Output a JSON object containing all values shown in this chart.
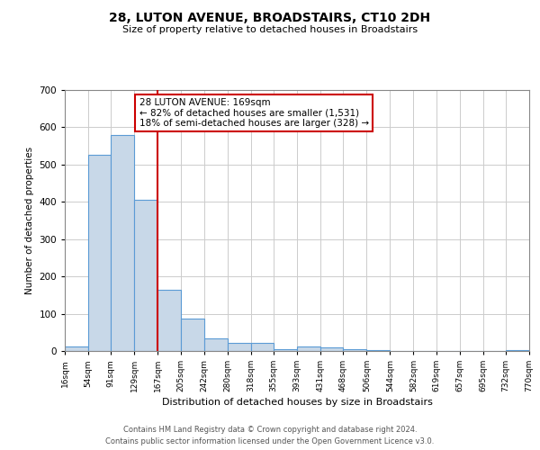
{
  "title": "28, LUTON AVENUE, BROADSTAIRS, CT10 2DH",
  "subtitle": "Size of property relative to detached houses in Broadstairs",
  "xlabel": "Distribution of detached houses by size in Broadstairs",
  "ylabel": "Number of detached properties",
  "bin_edges": [
    16,
    54,
    91,
    129,
    167,
    205,
    242,
    280,
    318,
    355,
    393,
    431,
    468,
    506,
    544,
    582,
    619,
    657,
    695,
    732,
    770
  ],
  "bar_heights": [
    13,
    527,
    580,
    405,
    163,
    87,
    35,
    22,
    22,
    5,
    13,
    10,
    5,
    3,
    0,
    0,
    0,
    0,
    0,
    3
  ],
  "bar_color": "#c8d8e8",
  "bar_edge_color": "#5b9bd5",
  "vline_x": 167,
  "vline_color": "#cc0000",
  "ylim": [
    0,
    700
  ],
  "yticks": [
    0,
    100,
    200,
    300,
    400,
    500,
    600,
    700
  ],
  "tick_labels": [
    "16sqm",
    "54sqm",
    "91sqm",
    "129sqm",
    "167sqm",
    "205sqm",
    "242sqm",
    "280sqm",
    "318sqm",
    "355sqm",
    "393sqm",
    "431sqm",
    "468sqm",
    "506sqm",
    "544sqm",
    "582sqm",
    "619sqm",
    "657sqm",
    "695sqm",
    "732sqm",
    "770sqm"
  ],
  "annotation_title": "28 LUTON AVENUE: 169sqm",
  "annotation_line1": "← 82% of detached houses are smaller (1,531)",
  "annotation_line2": "18% of semi-detached houses are larger (328) →",
  "annotation_box_color": "#ffffff",
  "annotation_box_edge": "#cc0000",
  "footer_line1": "Contains HM Land Registry data © Crown copyright and database right 2024.",
  "footer_line2": "Contains public sector information licensed under the Open Government Licence v3.0.",
  "background_color": "#ffffff",
  "grid_color": "#cccccc"
}
